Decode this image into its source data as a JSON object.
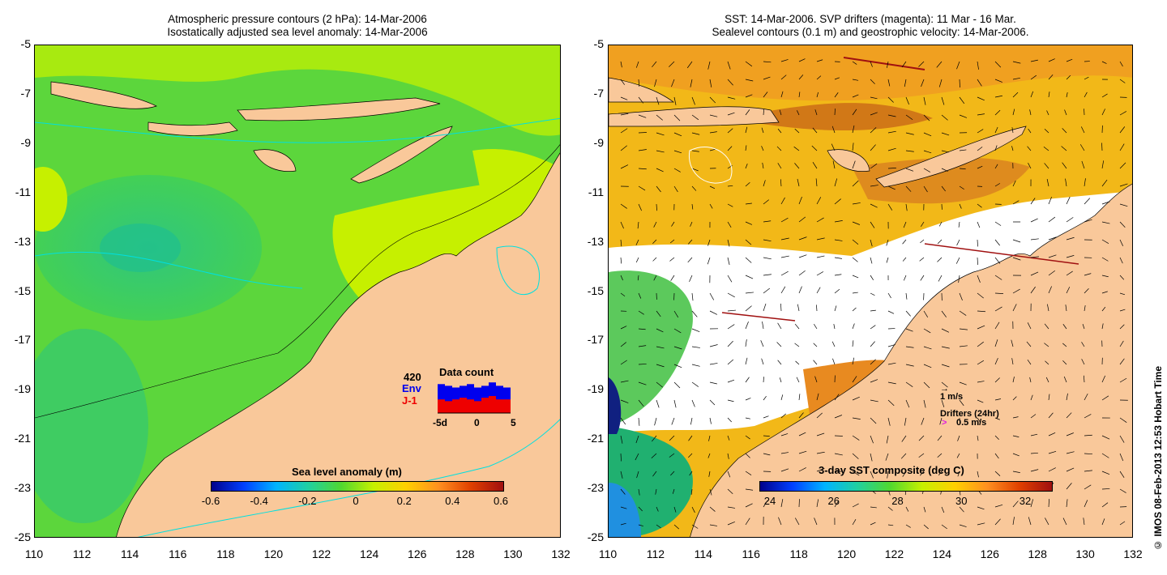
{
  "left_panel": {
    "title_line1": "Atmospheric pressure contours (2 hPa): 14-Mar-2006",
    "title_line2": "Isostatically adjusted sea level anomaly: 14-Mar-2006",
    "colorbar": {
      "label": "Sea level anomaly (m)",
      "ticks": [
        "-0.6",
        "-0.4",
        "-0.2",
        "0",
        "0.2",
        "0.4",
        "0.6"
      ]
    },
    "data_count": {
      "title": "Data count",
      "total": "420",
      "env_label": "Env",
      "j1_label": "J-1",
      "env_values": [
        0.85,
        0.8,
        0.75,
        0.8,
        0.85,
        0.75,
        0.8,
        0.9,
        0.8,
        0.75
      ],
      "j1_values": [
        0.4,
        0.35,
        0.4,
        0.45,
        0.4,
        0.35,
        0.45,
        0.5,
        0.4,
        0.4
      ],
      "axis_ticks": [
        "-5d",
        "0",
        "5"
      ],
      "env_color": "#0000ee",
      "j1_color": "#ee0000"
    }
  },
  "right_panel": {
    "title_line1": "SST: 14-Mar-2006. SVP drifters (magenta): 11 Mar - 16 Mar.",
    "title_line2": "Sealevel contours (0.1 m) and geostrophic velocity: 14-Mar-2006.",
    "colorbar": {
      "label": "3-day SST composite (deg C)",
      "ticks": [
        "24",
        "26",
        "28",
        "30",
        "32"
      ]
    },
    "legend": {
      "velocity_scale": "1 m/s",
      "drifters_label": "Drifters (24hr)",
      "drifter_symbol": ">",
      "drifter_scale": "0.5 m/s"
    }
  },
  "axes": {
    "y_ticks": [
      "-5",
      "-7",
      "-9",
      "-11",
      "-13",
      "-15",
      "-17",
      "-19",
      "-21",
      "-23",
      "-25"
    ],
    "x_ticks": [
      "110",
      "112",
      "114",
      "116",
      "118",
      "120",
      "122",
      "124",
      "126",
      "128",
      "130",
      "132"
    ]
  },
  "copyright": "© IMOS 08-Feb-2013 12:53 Hobart Time",
  "colors": {
    "land": "#f9c89a",
    "sea_low": "#1fbf8f",
    "sea_mid": "#5fd83a",
    "sea_high": "#c6f000",
    "sst_hot": "#f0a020",
    "sst_warm": "#f6c000",
    "cloud": "#ffffff"
  }
}
